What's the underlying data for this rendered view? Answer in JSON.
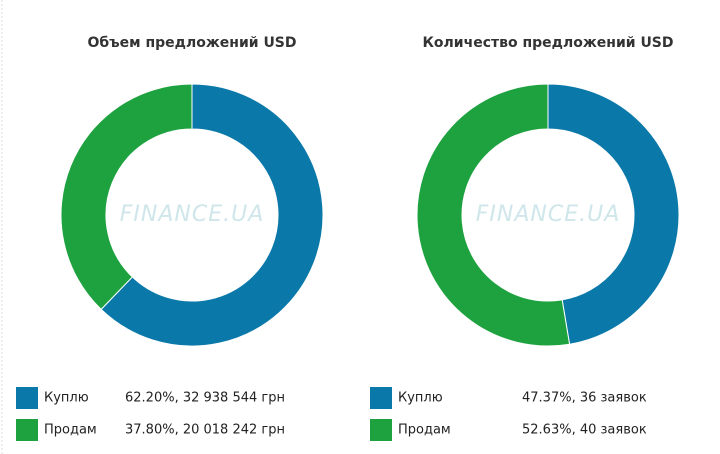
{
  "chart_data": [
    {
      "type": "pie",
      "title": "Объем предложений USD",
      "watermark": "FINANCE.UA",
      "categories": [
        "Куплю",
        "Продам"
      ],
      "values": [
        62.2,
        37.8
      ],
      "value_labels": [
        "62.20%, 32 938 544 грн",
        "37.80%, 20 018 242 грн"
      ],
      "colors": [
        "#0a78a8",
        "#1ea23f"
      ]
    },
    {
      "type": "pie",
      "title": "Количество предложений USD",
      "watermark": "FINANCE.UA",
      "categories": [
        "Куплю",
        "Продам"
      ],
      "values": [
        47.37,
        52.63
      ],
      "value_labels": [
        "47.37%, 36 заявок",
        "52.63%, 40 заявок"
      ],
      "colors": [
        "#0a78a8",
        "#1ea23f"
      ]
    }
  ]
}
